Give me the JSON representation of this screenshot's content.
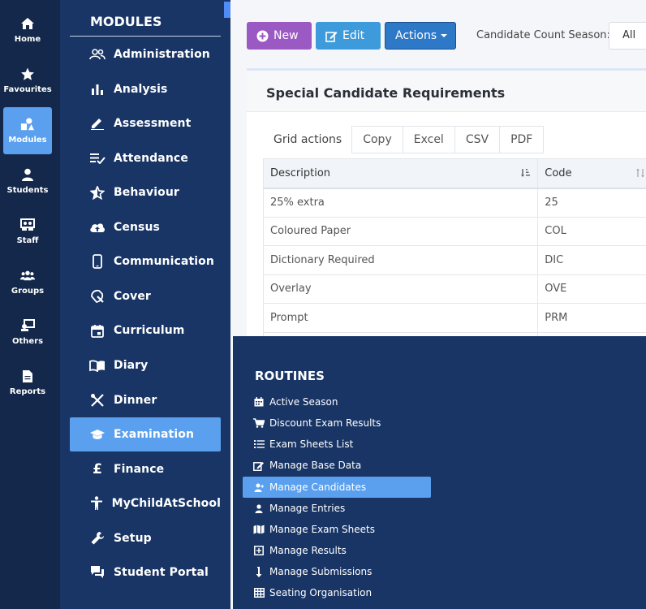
{
  "rail": [
    {
      "label": "Home",
      "icon": "home-icon"
    },
    {
      "label": "Favourites",
      "icon": "star-icon"
    },
    {
      "label": "Modules",
      "icon": "shapes-icon",
      "active": true
    },
    {
      "label": "Students",
      "icon": "user-icon"
    },
    {
      "label": "Staff",
      "icon": "staff-icon"
    },
    {
      "label": "Groups",
      "icon": "users-icon"
    },
    {
      "label": "Others",
      "icon": "others-icon"
    },
    {
      "label": "Reports",
      "icon": "document-icon"
    }
  ],
  "modules": {
    "title": "MODULES",
    "items": [
      {
        "label": "Administration",
        "icon": "administration-icon"
      },
      {
        "label": "Analysis",
        "icon": "bar-chart-icon"
      },
      {
        "label": "Assessment",
        "icon": "pencil-icon"
      },
      {
        "label": "Attendance",
        "icon": "checklist-icon"
      },
      {
        "label": "Behaviour",
        "icon": "star-outline-icon"
      },
      {
        "label": "Census",
        "icon": "cloud-upload-icon"
      },
      {
        "label": "Communication",
        "icon": "mobile-icon"
      },
      {
        "label": "Cover",
        "icon": "cover-icon"
      },
      {
        "label": "Curriculum",
        "icon": "calendar-icon"
      },
      {
        "label": "Diary",
        "icon": "book-icon"
      },
      {
        "label": "Dinner",
        "icon": "cutlery-icon"
      },
      {
        "label": "Examination",
        "icon": "graduation-cap-icon",
        "active": true
      },
      {
        "label": "Finance",
        "icon": "pound-icon"
      },
      {
        "label": "MyChildAtSchool",
        "icon": "child-icon"
      },
      {
        "label": "Setup",
        "icon": "wrench-icon"
      },
      {
        "label": "Student Portal",
        "icon": "chat-icon"
      }
    ]
  },
  "toolbar": {
    "new_label": "New",
    "edit_label": "Edit",
    "actions_label": "Actions",
    "season_label": "Candidate Count Season:",
    "season_value": "All"
  },
  "card": {
    "title": "Special Candidate Requirements",
    "grid_actions_label": "Grid actions",
    "grid_buttons": [
      "Copy",
      "Excel",
      "CSV",
      "PDF"
    ],
    "columns": [
      "Description",
      "Code"
    ],
    "rows": [
      [
        "25% extra",
        "25"
      ],
      [
        "Coloured Paper",
        "COL"
      ],
      [
        "Dictionary Required",
        "DIC"
      ],
      [
        "Overlay",
        "OVE"
      ],
      [
        "Prompt",
        "PRM"
      ]
    ]
  },
  "routines": {
    "title": "ROUTINES",
    "items": [
      {
        "label": "Active Season",
        "icon": "calendar-icon"
      },
      {
        "label": "Discount Exam Results",
        "icon": "cart-icon"
      },
      {
        "label": "Exam Sheets List",
        "icon": "list-icon"
      },
      {
        "label": "Manage Base Data",
        "icon": "edit-icon"
      },
      {
        "label": "Manage Candidates",
        "icon": "user-plus-icon",
        "active": true
      },
      {
        "label": "Manage Entries",
        "icon": "user-icon"
      },
      {
        "label": "Manage Exam Sheets",
        "icon": "map-icon"
      },
      {
        "label": "Manage Results",
        "icon": "plus-square-icon"
      },
      {
        "label": "Manage Submissions",
        "icon": "arrow-down-icon"
      },
      {
        "label": "Seating Organisation",
        "icon": "grid-icon"
      }
    ]
  },
  "colors": {
    "rail_bg": "#13284a",
    "panel_bg": "#183566",
    "active": "#5aa0ee",
    "new_button": "#9b59c3",
    "edit_button": "#3d9bdc",
    "actions_button": "#2e78c8"
  }
}
